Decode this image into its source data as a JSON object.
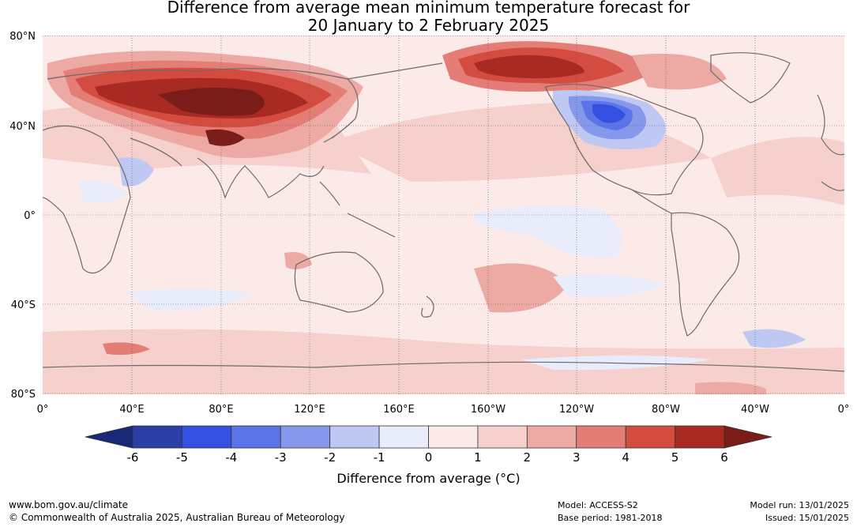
{
  "title_line1": "Difference from average mean minimum temperature forecast for",
  "title_line2": "20 January to 2 February 2025",
  "lat_labels": [
    "80°N",
    "40°N",
    "0°",
    "40°S",
    "80°S"
  ],
  "lon_labels": [
    "0°",
    "40°E",
    "80°E",
    "120°E",
    "160°E",
    "160°W",
    "120°W",
    "80°W",
    "40°W",
    "0°"
  ],
  "colorbar": {
    "label": "Difference from average (°C)",
    "ticks": [
      "-6",
      "-5",
      "-4",
      "-3",
      "-2",
      "-1",
      "0",
      "1",
      "2",
      "3",
      "4",
      "5",
      "6"
    ],
    "colors": [
      "#2b3ea8",
      "#3350e0",
      "#5b74e8",
      "#8598ec",
      "#bfc8f3",
      "#e8ecfb",
      "#fbeae8",
      "#f5d0cc",
      "#eda9a3",
      "#e47d76",
      "#d44b3f",
      "#a82a22"
    ],
    "under_color": "#1a2878",
    "over_color": "#7a1c18"
  },
  "footer": {
    "website": "www.bom.gov.au/climate",
    "copyright": "© Commonwealth of Australia 2025, Australian Bureau of Meteorology",
    "model": "Model: ACCESS-S2",
    "base_period": "Base period: 1981-2018",
    "model_run": "Model run: 13/01/2025",
    "issued": "Issued: 15/01/2025"
  }
}
